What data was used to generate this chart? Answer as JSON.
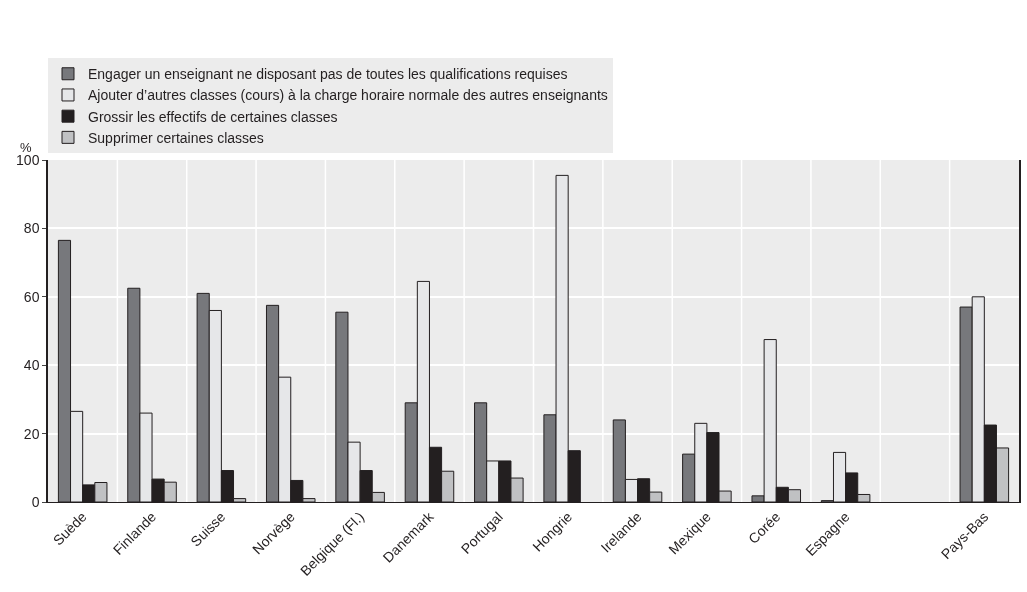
{
  "chart_data": {
    "type": "bar",
    "ylabel": "%",
    "categories": [
      "Suède",
      "Finlande",
      "Suisse",
      "Norvège",
      "Belgique (Fl.)",
      "Danemark",
      "Portugal",
      "Hongrie",
      "Irelande",
      "Mexique",
      "Corée",
      "Espagne",
      null,
      "Pays-Bas"
    ],
    "series": [
      {
        "name": "Engager un enseignant ne disposant pas de toutes les qualifications requises",
        "color": "#77787c",
        "values": [
          76.5,
          62.5,
          61,
          57.5,
          55.5,
          29,
          29,
          25.5,
          24,
          14,
          1.8,
          0.4,
          null,
          57
        ]
      },
      {
        "name": "Ajouter d’autres classes (cours) à la charge horaire normale des autres enseignants",
        "color": "#e6e7e9",
        "values": [
          26.5,
          26,
          56,
          36.5,
          17.5,
          64.5,
          12,
          95.5,
          6.6,
          23,
          47.5,
          14.5,
          null,
          60
        ]
      },
      {
        "name": "Grossir les effectifs de certaines classes",
        "color": "#231f20",
        "values": [
          5,
          6.7,
          9.2,
          6.3,
          9.2,
          16,
          12,
          15,
          6.8,
          20.3,
          4.3,
          8.5,
          null,
          22.5
        ]
      },
      {
        "name": "Supprimer certaines classes",
        "color": "#c0c1c3",
        "values": [
          5.7,
          5.8,
          1,
          1,
          2.8,
          9,
          7,
          null,
          2.9,
          3.2,
          3.6,
          2.2,
          null,
          15.8
        ]
      }
    ],
    "ylim": [
      0,
      100
    ],
    "yticks": [
      0,
      20,
      40,
      60,
      80,
      100
    ],
    "grid": true,
    "legend": "top"
  }
}
